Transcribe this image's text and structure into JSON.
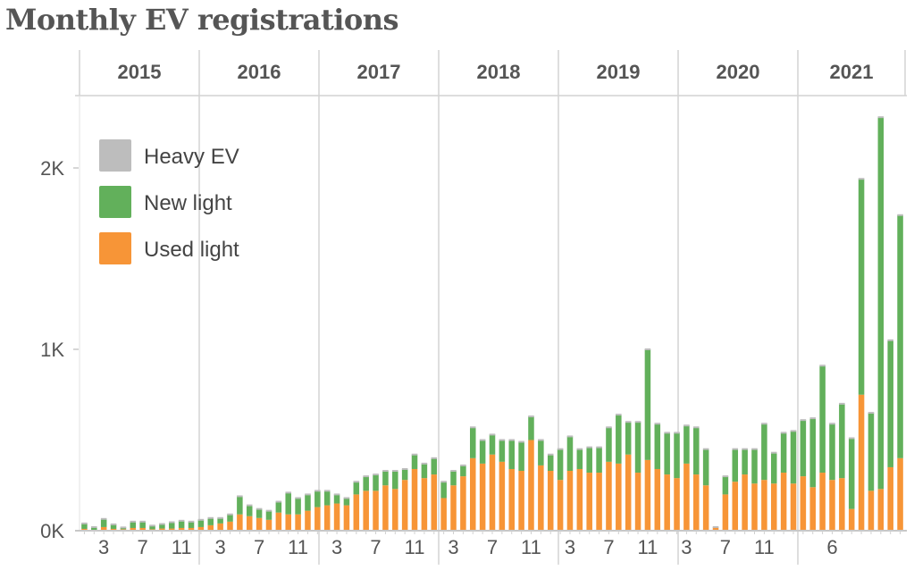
{
  "chart_data": {
    "type": "bar",
    "stacked": true,
    "title": "Monthly EV registrations",
    "xlabel": "",
    "ylabel": "",
    "ylim": [
      0,
      2400
    ],
    "y_ticks": [
      {
        "value": 0,
        "label": "0K"
      },
      {
        "value": 1000,
        "label": "1K"
      },
      {
        "value": 2000,
        "label": "2K"
      }
    ],
    "years": [
      "2015",
      "2016",
      "2017",
      "2018",
      "2019",
      "2020",
      "2021"
    ],
    "month_ticks": [
      {
        "year_index": 0,
        "month": 3,
        "label": "3"
      },
      {
        "year_index": 0,
        "month": 7,
        "label": "7"
      },
      {
        "year_index": 0,
        "month": 11,
        "label": "11"
      },
      {
        "year_index": 1,
        "month": 3,
        "label": "3"
      },
      {
        "year_index": 1,
        "month": 7,
        "label": "7"
      },
      {
        "year_index": 1,
        "month": 11,
        "label": "11"
      },
      {
        "year_index": 2,
        "month": 3,
        "label": "3"
      },
      {
        "year_index": 2,
        "month": 7,
        "label": "7"
      },
      {
        "year_index": 2,
        "month": 11,
        "label": "11"
      },
      {
        "year_index": 3,
        "month": 3,
        "label": "3"
      },
      {
        "year_index": 3,
        "month": 7,
        "label": "7"
      },
      {
        "year_index": 3,
        "month": 11,
        "label": "11"
      },
      {
        "year_index": 4,
        "month": 3,
        "label": "3"
      },
      {
        "year_index": 4,
        "month": 7,
        "label": "7"
      },
      {
        "year_index": 4,
        "month": 11,
        "label": "11"
      },
      {
        "year_index": 5,
        "month": 3,
        "label": "3"
      },
      {
        "year_index": 5,
        "month": 7,
        "label": "7"
      },
      {
        "year_index": 5,
        "month": 11,
        "label": "11"
      },
      {
        "year_index": 6,
        "month": 6,
        "label": "6"
      }
    ],
    "legend": [
      {
        "name": "Heavy EV",
        "color": "#bdbdbd"
      },
      {
        "name": "New light",
        "color": "#62b05b"
      },
      {
        "name": "Used light",
        "color": "#f79537"
      }
    ],
    "series": [
      {
        "name": "Used light",
        "color": "#f79537",
        "values": [
          10,
          5,
          20,
          10,
          8,
          15,
          15,
          8,
          12,
          12,
          15,
          15,
          20,
          30,
          40,
          50,
          90,
          80,
          70,
          60,
          100,
          90,
          90,
          110,
          130,
          140,
          150,
          140,
          200,
          220,
          220,
          250,
          230,
          280,
          340,
          290,
          310,
          180,
          250,
          300,
          400,
          370,
          420,
          380,
          340,
          330,
          500,
          360,
          330,
          280,
          330,
          340,
          320,
          320,
          380,
          370,
          420,
          320,
          390,
          340,
          310,
          290,
          370,
          310,
          250,
          20,
          200,
          270,
          310,
          260,
          280,
          260,
          320,
          260,
          300,
          240,
          320,
          280,
          290,
          120,
          750,
          220,
          230,
          350,
          400
        ]
      },
      {
        "name": "New light",
        "color": "#62b05b",
        "values": [
          30,
          15,
          45,
          25,
          10,
          35,
          35,
          20,
          25,
          35,
          40,
          35,
          40,
          40,
          30,
          40,
          100,
          60,
          50,
          50,
          60,
          120,
          90,
          90,
          90,
          80,
          50,
          40,
          70,
          80,
          90,
          80,
          100,
          60,
          80,
          80,
          90,
          90,
          80,
          60,
          170,
          130,
          110,
          120,
          160,
          160,
          130,
          140,
          90,
          170,
          190,
          110,
          140,
          140,
          190,
          270,
          180,
          280,
          610,
          250,
          230,
          250,
          210,
          260,
          200,
          0,
          100,
          180,
          140,
          190,
          310,
          170,
          220,
          290,
          310,
          380,
          590,
          310,
          410,
          390,
          1190,
          430,
          2050,
          700,
          1340
        ]
      },
      {
        "name": "Heavy EV",
        "color": "#bdbdbd",
        "values": [
          0,
          0,
          0,
          0,
          0,
          0,
          0,
          0,
          0,
          0,
          0,
          0,
          0,
          0,
          0,
          0,
          0,
          0,
          0,
          0,
          0,
          0,
          0,
          0,
          0,
          0,
          0,
          0,
          0,
          0,
          0,
          0,
          0,
          0,
          0,
          0,
          0,
          0,
          0,
          0,
          0,
          0,
          0,
          0,
          0,
          0,
          0,
          0,
          0,
          0,
          0,
          0,
          0,
          0,
          0,
          0,
          0,
          0,
          0,
          0,
          0,
          0,
          0,
          0,
          0,
          0,
          0,
          0,
          0,
          0,
          0,
          0,
          0,
          0,
          0,
          0,
          0,
          0,
          0,
          0,
          0,
          0,
          0,
          0,
          0
        ]
      }
    ]
  }
}
